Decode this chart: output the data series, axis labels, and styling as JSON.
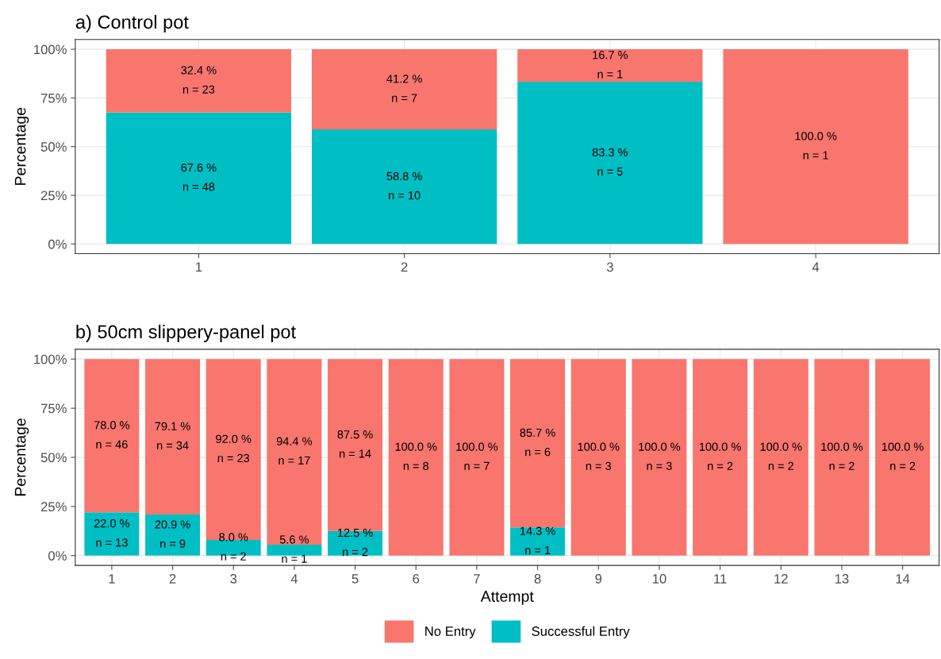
{
  "chart_data": [
    {
      "type": "bar",
      "title": "a) Control pot",
      "ylabel": "Percentage",
      "stacked": true,
      "categories": [
        "1",
        "2",
        "3",
        "4"
      ],
      "series": [
        {
          "color": "#00bfc4",
          "values": [
            67.6,
            58.8,
            83.3,
            0
          ],
          "value_labels": [
            "67.6 %\nn = 48",
            "58.8 %\nn = 10",
            "83.3 %\nn = 5",
            null
          ]
        },
        {
          "color": "#f8766d",
          "values": [
            32.4,
            41.2,
            16.7,
            100.0
          ],
          "value_labels": [
            "32.4 %\nn = 23",
            "41.2 %\nn = 7",
            "16.7 %\nn = 1",
            "100.0 %\nn = 1"
          ]
        }
      ],
      "ylim": [
        -5,
        105
      ],
      "yticks": [
        {
          "value": 0,
          "label": "0%"
        },
        {
          "value": 25,
          "label": "25%"
        },
        {
          "value": 50,
          "label": "50%"
        },
        {
          "value": 75,
          "label": "75%"
        },
        {
          "value": 100,
          "label": "100%"
        }
      ],
      "grid": true
    },
    {
      "type": "bar",
      "title": "b) 50cm slippery-panel pot",
      "xlabel": "Attempt",
      "ylabel": "Percentage",
      "stacked": true,
      "legend": "bottom",
      "categories": [
        "1",
        "2",
        "3",
        "4",
        "5",
        "6",
        "7",
        "8",
        "9",
        "10",
        "11",
        "12",
        "13",
        "14"
      ],
      "series": [
        {
          "name": "Successful Entry",
          "color": "#00bfc4",
          "values": [
            22.0,
            20.9,
            8.0,
            5.6,
            12.5,
            0,
            0,
            14.3,
            0,
            0,
            0,
            0,
            0,
            0
          ],
          "value_labels": [
            "22.0 %\nn = 13",
            "20.9 %\nn = 9",
            "8.0 %\nn = 2",
            "5.6 %\nn = 1",
            "12.5 %\nn = 2",
            null,
            null,
            "14.3 %\nn = 1",
            null,
            null,
            null,
            null,
            null,
            null
          ]
        },
        {
          "name": "No Entry",
          "color": "#f8766d",
          "values": [
            78.0,
            79.1,
            92.0,
            94.4,
            87.5,
            100.0,
            100.0,
            85.7,
            100.0,
            100.0,
            100.0,
            100.0,
            100.0,
            100.0
          ],
          "value_labels": [
            "78.0 %\nn = 46",
            "79.1 %\nn = 34",
            "92.0 %\nn = 23",
            "94.4 %\nn = 17",
            "87.5 %\nn = 14",
            "100.0 %\nn = 8",
            "100.0 %\nn = 7",
            "85.7 %\nn = 6",
            "100.0 %\nn = 3",
            "100.0 %\nn = 3",
            "100.0 %\nn = 2",
            "100.0 %\nn = 2",
            "100.0 %\nn = 2",
            "100.0 %\nn = 2"
          ]
        }
      ],
      "ylim": [
        -5,
        105
      ],
      "yticks": [
        {
          "value": 0,
          "label": "0%"
        },
        {
          "value": 25,
          "label": "25%"
        },
        {
          "value": 50,
          "label": "50%"
        },
        {
          "value": 75,
          "label": "75%"
        },
        {
          "value": 100,
          "label": "100%"
        }
      ],
      "grid": true
    }
  ]
}
